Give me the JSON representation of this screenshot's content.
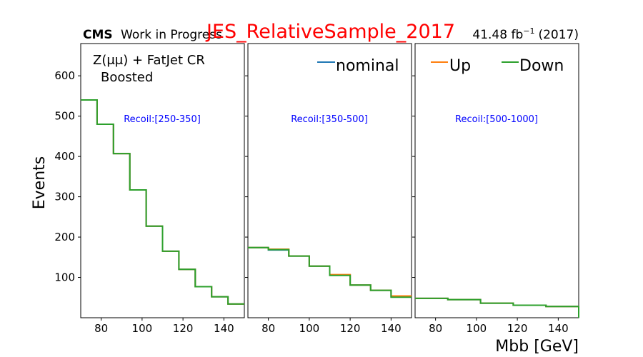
{
  "header": {
    "cms": "CMS",
    "work": "Work in Progress",
    "systematic_title": "JES_RelativeSample_2017",
    "lumi_value": "41.48 fb",
    "lumi_exp": "−1",
    "lumi_year": "(2017)"
  },
  "labels": {
    "region_line1": "Z(μμ) + FatJet CR",
    "region_line2": "Boosted",
    "ylabel": "Events",
    "xlabel": "Mbb [GeV]"
  },
  "legend": {
    "nominal": "nominal",
    "up": "Up",
    "down": "Down"
  },
  "colors": {
    "nominal": "#1f77b4",
    "up": "#ff7f0e",
    "down": "#2ca02c",
    "title": "#ff0000",
    "recoil": "#0000ff"
  },
  "chart_data": {
    "type": "line",
    "drawstyle": "steps-post",
    "ylim": [
      0,
      680
    ],
    "yticks": [
      100,
      200,
      300,
      400,
      500,
      600
    ],
    "xlim": [
      70,
      150
    ],
    "xticks": [
      80,
      100,
      120,
      140
    ],
    "series_names": [
      "nominal",
      "Up",
      "Down"
    ],
    "panels": [
      {
        "recoil_label": "Recoil:[250-350]",
        "bin_edges": [
          70,
          78,
          86,
          94,
          102,
          110,
          118,
          126,
          134,
          142,
          150
        ],
        "nominal": [
          540,
          480,
          407,
          317,
          227,
          165,
          120,
          77,
          52,
          34
        ],
        "up": [
          540,
          480,
          407,
          317,
          227,
          165,
          120,
          77,
          52,
          34
        ],
        "down": [
          540,
          480,
          407,
          317,
          227,
          165,
          120,
          77,
          52,
          34
        ]
      },
      {
        "recoil_label": "Recoil:[350-500]",
        "bin_edges": [
          70,
          80,
          90,
          100,
          110,
          120,
          130,
          140,
          150
        ],
        "nominal": [
          174,
          168,
          153,
          128,
          106,
          81,
          68,
          52
        ],
        "up": [
          174,
          170,
          153,
          128,
          107,
          81,
          68,
          54
        ],
        "down": [
          174,
          169,
          153,
          128,
          105,
          81,
          68,
          51
        ]
      },
      {
        "recoil_label": "Recoil:[500-1000]",
        "bin_edges": [
          70,
          86,
          102,
          118,
          134,
          150
        ],
        "nominal": [
          48,
          45,
          36,
          31,
          28
        ],
        "up": [
          48,
          45,
          36,
          31,
          28
        ],
        "down": [
          48,
          45,
          36,
          31,
          28
        ]
      }
    ]
  }
}
